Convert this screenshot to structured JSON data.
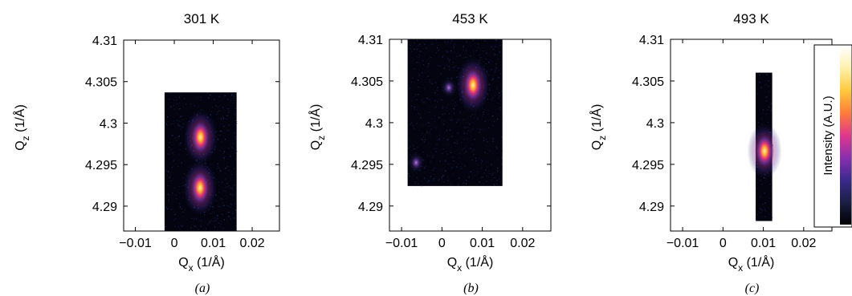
{
  "chart_data": [
    {
      "type": "heatmap",
      "title": "301 K",
      "caption": "(a)",
      "xlabel": {
        "main": "Q",
        "sub": "x",
        "unit": "(1/Å)"
      },
      "ylabel": {
        "main": "Q",
        "sub": "z",
        "unit": "(1/Å)"
      },
      "xlim": [
        -0.013,
        0.027
      ],
      "ylim": [
        4.287,
        4.31
      ],
      "xticks": [
        -0.01,
        0,
        0.01,
        0.02
      ],
      "xtick_labels": [
        "−0.01",
        "0",
        "0.01",
        "0.02"
      ],
      "yticks": [
        4.29,
        4.295,
        4.3,
        4.305,
        4.31
      ],
      "ytick_labels": [
        "4.29",
        "4.295",
        "4.3",
        "4.305",
        "4.31"
      ],
      "map_extent": {
        "x": [
          -0.0025,
          0.016
        ],
        "y": [
          4.287,
          4.3037
        ]
      },
      "peaks": [
        {
          "qx": 0.0067,
          "qz": 4.2983,
          "intensity": 1.0
        },
        {
          "qx": 0.0066,
          "qz": 4.2922,
          "intensity": 1.0
        }
      ]
    },
    {
      "type": "heatmap",
      "title": "453 K",
      "caption": "(b)",
      "xlabel": {
        "main": "Q",
        "sub": "x",
        "unit": "(1/Å)"
      },
      "ylabel": {
        "main": "Q",
        "sub": "z",
        "unit": "(1/Å)"
      },
      "xlim": [
        -0.013,
        0.027
      ],
      "ylim": [
        4.287,
        4.31
      ],
      "xticks": [
        -0.01,
        0,
        0.01,
        0.02
      ],
      "xtick_labels": [
        "−0.01",
        "0",
        "0.01",
        "0.02"
      ],
      "yticks": [
        4.29,
        4.295,
        4.3,
        4.305,
        4.31
      ],
      "ytick_labels": [
        "4.29",
        "4.295",
        "4.3",
        "4.305",
        "4.31"
      ],
      "map_extent": {
        "x": [
          -0.0085,
          0.015
        ],
        "y": [
          4.2924,
          4.31
        ]
      },
      "peaks": [
        {
          "qx": 0.0077,
          "qz": 4.3045,
          "intensity": 1.0
        },
        {
          "qx": 0.0017,
          "qz": 4.3042,
          "intensity": 0.35
        },
        {
          "qx": -0.0064,
          "qz": 4.2952,
          "intensity": 0.35
        }
      ]
    },
    {
      "type": "heatmap",
      "title": "493 K",
      "caption": "(c)",
      "xlabel": {
        "main": "Q",
        "sub": "x",
        "unit": "(1/Å)"
      },
      "ylabel": {
        "main": "Q",
        "sub": "z",
        "unit": "(1/Å)"
      },
      "xlim": [
        -0.013,
        0.027
      ],
      "ylim": [
        4.287,
        4.31
      ],
      "xticks": [
        -0.01,
        0,
        0.01,
        0.02
      ],
      "xtick_labels": [
        "−0.01",
        "0",
        "0.01",
        "0.02"
      ],
      "yticks": [
        4.29,
        4.295,
        4.3,
        4.305,
        4.31
      ],
      "ytick_labels": [
        "4.29",
        "4.295",
        "4.3",
        "4.305",
        "4.31"
      ],
      "map_extent": {
        "x": [
          0.0081,
          0.0122
        ],
        "y": [
          4.2882,
          4.306
        ]
      },
      "peaks": [
        {
          "qx": 0.0103,
          "qz": 4.2966,
          "intensity": 1.0
        }
      ],
      "colorbar": {
        "label": "Intensity (A.U.)",
        "colors": [
          "#000000",
          "#1a1f45",
          "#3b2a8c",
          "#8a2fb0",
          "#e0378d",
          "#ff7a3a",
          "#ffc83a",
          "#fff0a8",
          "#ffffff"
        ]
      }
    }
  ]
}
